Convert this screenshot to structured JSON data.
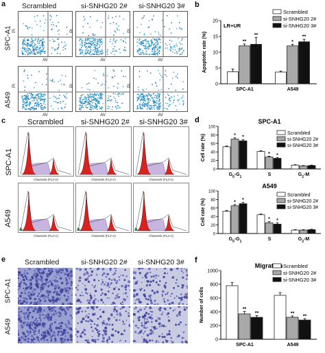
{
  "panels": {
    "a": {
      "letter": "a",
      "columns": [
        "Scrambled",
        "si-SNHG20 2#",
        "si-SNHG20 3#"
      ],
      "rows": [
        "SPC-A1",
        "A549"
      ],
      "xaxis": "AV",
      "yaxis": "PI"
    },
    "c": {
      "letter": "c",
      "columns": [
        "Scrambled",
        "si-SNHG20 2#",
        "si-SNHG20 3#"
      ],
      "rows": [
        "SPC-A1",
        "A549"
      ],
      "xaxis": "Channels (FL2-A)"
    },
    "e": {
      "letter": "e",
      "columns": [
        "Scrambled",
        "si-SNHG20 2#",
        "si-SNHG20 3#"
      ],
      "rows": [
        "SPC-A1",
        "A549"
      ]
    }
  },
  "chart_data": [
    {
      "id": "b",
      "letter": "b",
      "type": "bar",
      "annotation": "LR+UR",
      "ylabel": "Apoptotic rate (%)",
      "ylim": [
        0,
        20
      ],
      "yticks": [
        0,
        5,
        10,
        15,
        20
      ],
      "categories": [
        "SPC-A1",
        "A549"
      ],
      "legend": [
        "Scrambled",
        "si-SNHG20 2#",
        "si-SNHG20 3#"
      ],
      "legend_position": "top-right",
      "series": [
        {
          "name": "Scrambled",
          "color": "#ffffff",
          "values": [
            3.8,
            3.7
          ],
          "errors": [
            0.9,
            0.3
          ],
          "sig": [
            "",
            ""
          ]
        },
        {
          "name": "si-SNHG20 2#",
          "color": "#a9a9a9",
          "values": [
            12.0,
            12.0
          ],
          "errors": [
            0.6,
            0.5
          ],
          "sig": [
            "**",
            "*"
          ]
        },
        {
          "name": "si-SNHG20 3#",
          "color": "#111111",
          "values": [
            12.5,
            13.3
          ],
          "errors": [
            2.2,
            0.8
          ],
          "sig": [
            "**",
            "**"
          ]
        }
      ]
    },
    {
      "id": "d1",
      "letter": "d",
      "type": "bar",
      "title": "SPC-A1",
      "ylabel": "Cell rate (%)",
      "ylim": [
        0,
        100
      ],
      "yticks": [
        0,
        20,
        40,
        60,
        80,
        100
      ],
      "categories": [
        "G0-G1",
        "S",
        "G2-M"
      ],
      "legend": [
        "Scrambled",
        "si-SNHG20 2#",
        "si-SNHG20 3#"
      ],
      "legend_position": "top-right",
      "series": [
        {
          "name": "Scrambled",
          "color": "#ffffff",
          "values": [
            52,
            41,
            9
          ],
          "errors": [
            2,
            2,
            1
          ],
          "sig": [
            "",
            "",
            ""
          ]
        },
        {
          "name": "si-SNHG20 2#",
          "color": "#a9a9a9",
          "values": [
            70,
            28,
            7
          ],
          "errors": [
            3,
            2,
            1
          ],
          "sig": [
            "*",
            "*",
            ""
          ]
        },
        {
          "name": "si-SNHG20 3#",
          "color": "#111111",
          "values": [
            66,
            25,
            8
          ],
          "errors": [
            3,
            2,
            1
          ],
          "sig": [
            "*",
            "*",
            ""
          ]
        }
      ]
    },
    {
      "id": "d2",
      "letter": "",
      "type": "bar",
      "title": "A549",
      "ylabel": "Cell rate (%)",
      "ylim": [
        0,
        100
      ],
      "yticks": [
        0,
        20,
        40,
        60,
        80,
        100
      ],
      "categories": [
        "G0-G1",
        "S",
        "G2-M"
      ],
      "legend": [
        "Scrambled",
        "si-SNHG20 2#",
        "si-SNHG20 3#"
      ],
      "legend_position": "top-right",
      "series": [
        {
          "name": "Scrambled",
          "color": "#ffffff",
          "values": [
            52,
            44,
            8
          ],
          "errors": [
            2,
            2,
            1
          ],
          "sig": [
            "",
            "",
            ""
          ]
        },
        {
          "name": "si-SNHG20 2#",
          "color": "#a9a9a9",
          "values": [
            65,
            25,
            8
          ],
          "errors": [
            3,
            3,
            1
          ],
          "sig": [
            "*",
            "*",
            ""
          ]
        },
        {
          "name": "si-SNHG20 3#",
          "color": "#111111",
          "values": [
            70,
            22,
            9
          ],
          "errors": [
            3,
            3,
            1
          ],
          "sig": [
            "*",
            "*",
            ""
          ]
        }
      ]
    },
    {
      "id": "f",
      "letter": "f",
      "type": "bar",
      "title": "Migration",
      "ylabel": "Number of cells",
      "ylim": [
        0,
        1000
      ],
      "yticks": [
        0,
        200,
        400,
        600,
        800,
        1000
      ],
      "categories": [
        "SPC-A1",
        "A549"
      ],
      "legend": [
        "Scrambled",
        "si-SNHG20 2#",
        "si-SNHG20 3#"
      ],
      "legend_position": "top-right",
      "series": [
        {
          "name": "Scrambled",
          "color": "#ffffff",
          "values": [
            780,
            640
          ],
          "errors": [
            45,
            40
          ],
          "sig": [
            "",
            ""
          ]
        },
        {
          "name": "si-SNHG20 2#",
          "color": "#a9a9a9",
          "values": [
            370,
            320
          ],
          "errors": [
            35,
            20
          ],
          "sig": [
            "**",
            "**"
          ]
        },
        {
          "name": "si-SNHG20 3#",
          "color": "#111111",
          "values": [
            320,
            280
          ],
          "errors": [
            25,
            20
          ],
          "sig": [
            "**",
            "**"
          ]
        }
      ]
    }
  ]
}
